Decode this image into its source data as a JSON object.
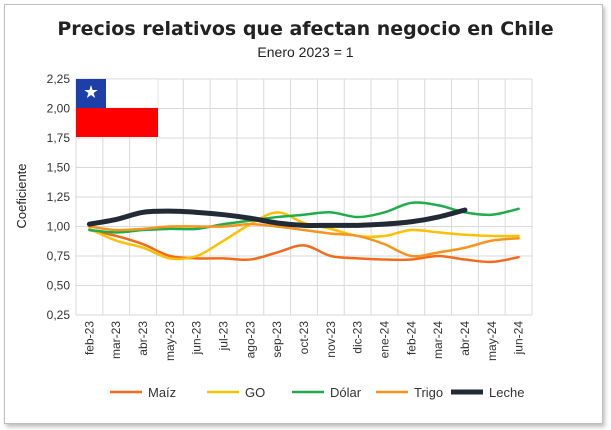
{
  "chart_data": {
    "type": "line",
    "title": "Precios relativos que afectan negocio en Chile",
    "subtitle": "Enero 2023 = 1",
    "ylabel": "Coeficiente",
    "xlabel": "",
    "ylim": [
      0.25,
      2.25
    ],
    "yticks": [
      "0,25",
      "0,50",
      "0,75",
      "1,00",
      "1,25",
      "1,50",
      "1,75",
      "2,00",
      "2,25"
    ],
    "ytick_values": [
      0.25,
      0.5,
      0.75,
      1.0,
      1.25,
      1.5,
      1.75,
      2.0,
      2.25
    ],
    "categories": [
      "feb-23",
      "mar-23",
      "abr-23",
      "may-23",
      "jun-23",
      "jul-23",
      "ago-23",
      "sep-23",
      "oct-23",
      "nov-23",
      "dic-23",
      "ene-24",
      "feb-24",
      "mar-24",
      "abr-24",
      "may-24",
      "jun-24"
    ],
    "legend_position": "bottom",
    "grid": true,
    "series": [
      {
        "name": "Maíz",
        "color": "#f26b1d",
        "width": 2.5,
        "values": [
          0.97,
          0.92,
          0.85,
          0.75,
          0.73,
          0.73,
          0.72,
          0.78,
          0.84,
          0.75,
          0.73,
          0.72,
          0.72,
          0.75,
          0.72,
          0.7,
          0.74
        ]
      },
      {
        "name": "GO",
        "color": "#ffc000",
        "width": 2.5,
        "values": [
          0.98,
          0.88,
          0.82,
          0.73,
          0.75,
          0.88,
          1.02,
          1.12,
          1.03,
          0.98,
          0.92,
          0.92,
          0.97,
          0.95,
          0.93,
          0.92,
          0.92
        ]
      },
      {
        "name": "Dólar",
        "color": "#1fad4b",
        "width": 2.5,
        "values": [
          0.97,
          0.95,
          0.97,
          0.98,
          0.98,
          1.02,
          1.05,
          1.08,
          1.1,
          1.12,
          1.08,
          1.12,
          1.2,
          1.18,
          1.12,
          1.1,
          1.15
        ]
      },
      {
        "name": "Trigo",
        "color": "#f7941d",
        "width": 2.5,
        "values": [
          1.0,
          0.97,
          0.98,
          1.0,
          1.0,
          1.0,
          1.02,
          1.0,
          0.97,
          0.94,
          0.92,
          0.85,
          0.75,
          0.78,
          0.82,
          0.88,
          0.9
        ]
      },
      {
        "name": "Leche",
        "color": "#222a35",
        "width": 5,
        "values": [
          1.02,
          1.06,
          1.12,
          1.13,
          1.12,
          1.1,
          1.07,
          1.03,
          1.01,
          1.01,
          1.01,
          1.02,
          1.04,
          1.08,
          1.14,
          null,
          null
        ]
      }
    ]
  },
  "flag": {
    "name": "chile-flag-icon",
    "colors": {
      "white": "#ffffff",
      "red": "#ff0000",
      "blue": "#1f3fa8"
    }
  }
}
